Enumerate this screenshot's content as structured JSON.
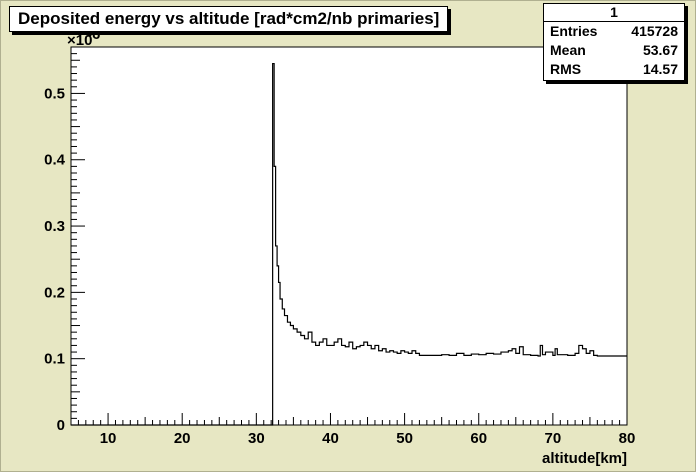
{
  "chart_data": {
    "type": "histogram",
    "title": "Deposited energy vs altitude [rad*cm2/nb primaries]",
    "xlabel": "altitude[km]",
    "ylabel": "",
    "y_exponent_label": "×10",
    "y_exponent_power": "-6",
    "xlim": [
      5,
      80
    ],
    "ylim": [
      0,
      0.57
    ],
    "xticks": [
      10,
      20,
      30,
      40,
      50,
      60,
      70,
      80
    ],
    "yticks": [
      0,
      0.1,
      0.2,
      0.3,
      0.4,
      0.5
    ],
    "ytick_labels": [
      "0",
      "0.1",
      "0.2",
      "0.3",
      "0.4",
      "0.5"
    ],
    "line_color": "#000000",
    "background": "#ffffff",
    "frame_background": "#e7e7c3",
    "x": [
      32.2,
      32.4,
      32.6,
      32.8,
      33.0,
      33.2,
      33.5,
      33.8,
      34.2,
      34.6,
      35.0,
      35.5,
      36.0,
      36.5,
      37.0,
      37.5,
      38.0,
      38.5,
      39.0,
      39.5,
      40.0,
      40.5,
      41.0,
      41.5,
      42.0,
      42.5,
      43.0,
      43.5,
      44.0,
      44.5,
      45.0,
      45.5,
      46.0,
      46.5,
      47.0,
      47.5,
      48.0,
      48.5,
      49.0,
      49.5,
      50.0,
      50.5,
      51.0,
      51.5,
      52.0,
      53.0,
      54.0,
      55.0,
      56.0,
      57.0,
      58.0,
      59.0,
      60.0,
      61.0,
      62.0,
      63.0,
      64.0,
      64.5,
      65.0,
      65.5,
      66.0,
      67.0,
      68.0,
      68.3,
      68.6,
      69.0,
      70.0,
      70.3,
      70.6,
      71.0,
      72.0,
      73.0,
      73.5,
      74.0,
      74.5,
      75.0,
      75.5,
      76.0,
      80.0
    ],
    "values": [
      0.545,
      0.39,
      0.27,
      0.24,
      0.215,
      0.19,
      0.175,
      0.165,
      0.155,
      0.15,
      0.145,
      0.14,
      0.135,
      0.13,
      0.14,
      0.125,
      0.12,
      0.125,
      0.13,
      0.12,
      0.12,
      0.125,
      0.13,
      0.12,
      0.118,
      0.125,
      0.115,
      0.118,
      0.12,
      0.125,
      0.12,
      0.115,
      0.12,
      0.112,
      0.115,
      0.11,
      0.112,
      0.11,
      0.108,
      0.112,
      0.11,
      0.108,
      0.112,
      0.108,
      0.105,
      0.105,
      0.105,
      0.106,
      0.105,
      0.108,
      0.105,
      0.107,
      0.106,
      0.108,
      0.107,
      0.11,
      0.112,
      0.115,
      0.108,
      0.118,
      0.106,
      0.105,
      0.104,
      0.12,
      0.106,
      0.11,
      0.105,
      0.115,
      0.106,
      0.106,
      0.105,
      0.108,
      0.12,
      0.115,
      0.108,
      0.112,
      0.105,
      0.104,
      0.104
    ]
  },
  "stats": {
    "title": "1",
    "rows": [
      {
        "label": "Entries",
        "value": "415728"
      },
      {
        "label": "Mean",
        "value": "53.67"
      },
      {
        "label": "RMS",
        "value": "14.57"
      }
    ]
  }
}
